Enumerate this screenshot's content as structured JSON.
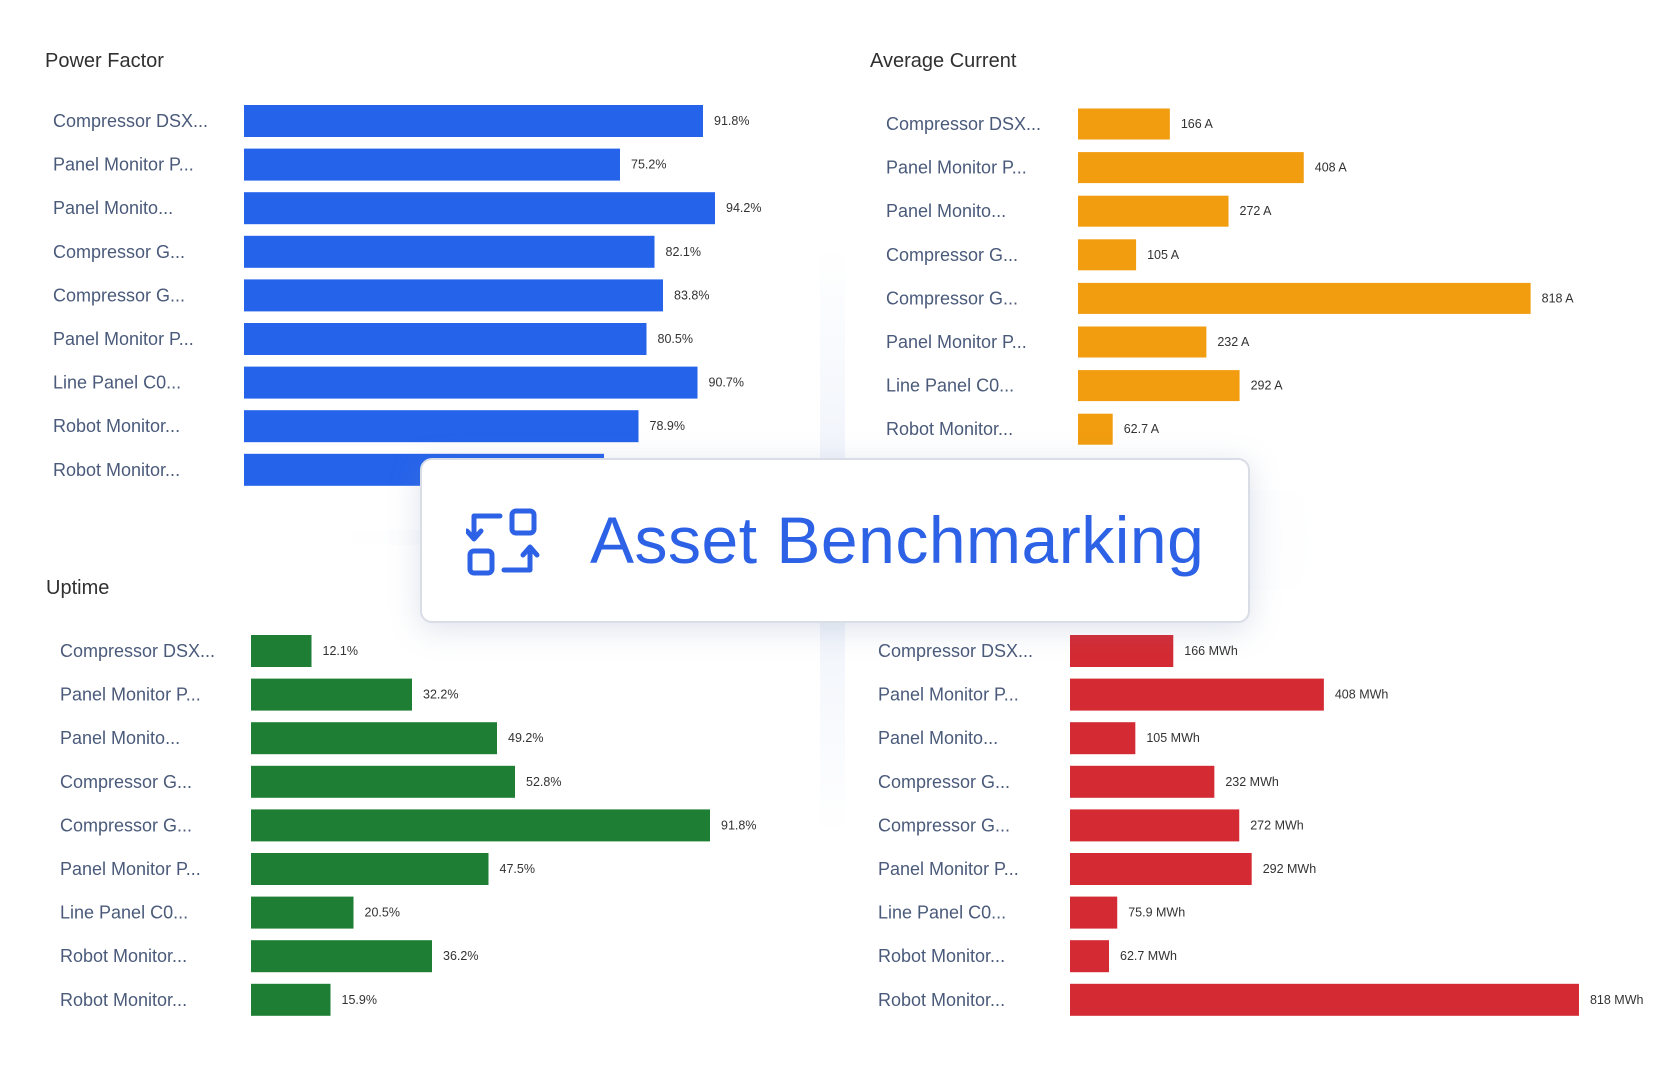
{
  "overlay": {
    "title": "Asset Benchmarking",
    "icon": "benchmark-compare-icon",
    "color": "#2d62e6"
  },
  "chart_data": [
    {
      "type": "bar",
      "orientation": "horizontal",
      "title": "Power Factor",
      "color": "#2563eb",
      "unit": "%",
      "categories": [
        "Compressor DSX...",
        "Panel Monitor P...",
        "Panel Monito...",
        "Compressor G...",
        "Compressor G...",
        "Panel Monitor P...",
        "Line Panel C0...",
        "Robot Monitor...",
        "Robot Monitor..."
      ],
      "values": [
        91.8,
        75.2,
        94.2,
        82.1,
        83.8,
        80.5,
        90.7,
        78.9,
        72.0
      ],
      "labels": [
        "91.8%",
        "75.2%",
        "94.2%",
        "82.1%",
        "83.8%",
        "80.5%",
        "90.7%",
        "78.9%",
        ""
      ],
      "xlim": [
        0,
        100
      ],
      "grid": false,
      "legend": "none"
    },
    {
      "type": "bar",
      "orientation": "horizontal",
      "title": "Average Current",
      "color": "#f29d0f",
      "unit": "A",
      "categories": [
        "Compressor DSX...",
        "Panel Monitor P...",
        "Panel Monito...",
        "Compressor G...",
        "Compressor G...",
        "Panel Monitor P...",
        "Line Panel C0...",
        "Robot Monitor..."
      ],
      "values": [
        166,
        408,
        272,
        105,
        818,
        232,
        292,
        62.7
      ],
      "labels": [
        "166 A",
        "408 A",
        "272 A",
        "105 A",
        "818 A",
        "232 A",
        "292 A",
        "62.7 A"
      ],
      "xlim": [
        0,
        900
      ],
      "grid": false,
      "legend": "none"
    },
    {
      "type": "bar",
      "orientation": "horizontal",
      "title": "Uptime",
      "color": "#1e7f34",
      "unit": "%",
      "categories": [
        "Compressor DSX...",
        "Panel Monitor P...",
        "Panel Monito...",
        "Compressor G...",
        "Compressor G...",
        "Panel Monitor P...",
        "Line Panel C0...",
        "Robot Monitor...",
        "Robot Monitor..."
      ],
      "values": [
        12.1,
        32.2,
        49.2,
        52.8,
        91.8,
        47.5,
        20.5,
        36.2,
        15.9
      ],
      "labels": [
        "12.1%",
        "32.2%",
        "49.2%",
        "52.8%",
        "91.8%",
        "47.5%",
        "20.5%",
        "36.2%",
        "15.9%"
      ],
      "xlim": [
        0,
        100
      ],
      "grid": false,
      "legend": "none"
    },
    {
      "type": "bar",
      "orientation": "horizontal",
      "title": "",
      "color": "#d42a33",
      "unit": "MWh",
      "categories": [
        "Compressor DSX...",
        "Panel Monitor P...",
        "Panel Monito...",
        "Compressor G...",
        "Compressor G...",
        "Panel Monitor P...",
        "Line Panel C0...",
        "Robot Monitor...",
        "Robot Monitor..."
      ],
      "values": [
        166,
        408,
        105,
        232,
        272,
        292,
        75.9,
        62.7,
        818
      ],
      "labels": [
        "166 MWh",
        "408 MWh",
        "105 MWh",
        "232 MWh",
        "272 MWh",
        "292 MWh",
        "75.9 MWh",
        "62.7 MWh",
        "818 MWh"
      ],
      "xlim": [
        0,
        900
      ],
      "grid": false,
      "legend": "none"
    }
  ]
}
